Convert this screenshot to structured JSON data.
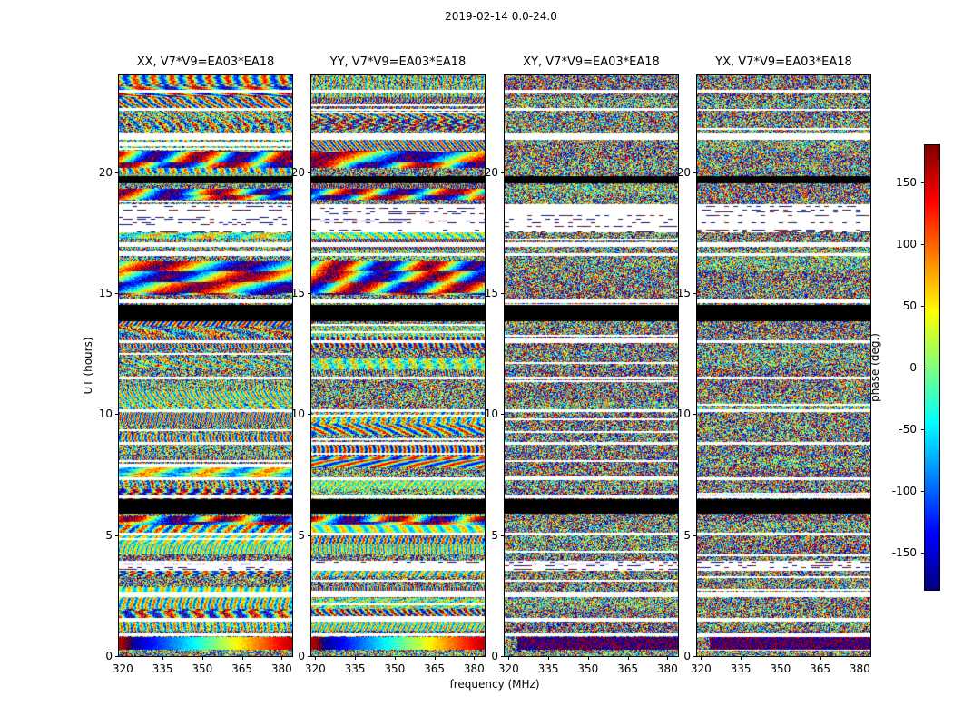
{
  "chart_data": {
    "type": "heatmap",
    "suptitle": "2019-02-14 0.0-24.0",
    "xlabel": "frequency (MHz)",
    "ylabel": "UT (hours)",
    "xlim": [
      318.5,
      384
    ],
    "ylim": [
      0,
      24
    ],
    "xticks": [
      320,
      335,
      350,
      365,
      380
    ],
    "yticks": [
      0,
      5,
      10,
      15,
      20
    ],
    "colormap": "jet",
    "grid": false,
    "panels": [
      {
        "label": "XX",
        "title": "XX, V7*V9=EA03*EA18",
        "kind": "parallel"
      },
      {
        "label": "YY",
        "title": "YY, V7*V9=EA03*EA18",
        "kind": "parallel"
      },
      {
        "label": "XY",
        "title": "XY, V7*V9=EA03*EA18",
        "kind": "cross"
      },
      {
        "label": "YX",
        "title": "YX, V7*V9=EA03*EA18",
        "kind": "cross"
      }
    ],
    "colorbar": {
      "label": "phase (deg.)",
      "ticks": [
        150,
        100,
        50,
        0,
        -50,
        -100,
        -150
      ],
      "vmin": -180,
      "vmax": 180
    },
    "values_description": "Noise-like interferometric visibility phases (-180..180 deg, jet colormap) vs frequency (x) and UT time (y) for baseline V7*V9=EA03*EA18; identical horizontal flagging bands in all four polarization panels: white gaps = no data, solid black bands = flagged/saturated scans, smooth rainbow bands = coherent phase sweeps.",
    "bands": [
      {
        "t0": 23.32,
        "t1": 23.42,
        "type": "white"
      },
      {
        "t0": 22.55,
        "t1": 22.65,
        "type": "white"
      },
      {
        "t0": 21.35,
        "t1": 21.62,
        "type": "white"
      },
      {
        "t0": 20.2,
        "t1": 20.9,
        "type": "smooth"
      },
      {
        "t0": 19.55,
        "t1": 19.85,
        "type": "black"
      },
      {
        "t0": 18.9,
        "t1": 19.35,
        "type": "smooth"
      },
      {
        "t0": 17.55,
        "t1": 18.7,
        "type": "sparse"
      },
      {
        "t0": 16.95,
        "t1": 17.12,
        "type": "white"
      },
      {
        "t0": 16.55,
        "t1": 16.68,
        "type": "white"
      },
      {
        "t0": 14.95,
        "t1": 16.35,
        "type": "smooth"
      },
      {
        "t0": 14.62,
        "t1": 14.75,
        "type": "white"
      },
      {
        "t0": 13.85,
        "t1": 14.55,
        "type": "black"
      },
      {
        "t0": 12.95,
        "t1": 13.06,
        "type": "white"
      },
      {
        "t0": 11.45,
        "t1": 11.57,
        "type": "white"
      },
      {
        "t0": 10.1,
        "t1": 10.22,
        "type": "white"
      },
      {
        "t0": 8.75,
        "t1": 8.87,
        "type": "white"
      },
      {
        "t0": 7.3,
        "t1": 7.42,
        "type": "white"
      },
      {
        "t0": 6.55,
        "t1": 6.65,
        "type": "white"
      },
      {
        "t0": 5.9,
        "t1": 6.5,
        "type": "black"
      },
      {
        "t0": 5.45,
        "t1": 5.78,
        "type": "smooth"
      },
      {
        "t0": 5.0,
        "t1": 5.12,
        "type": "white"
      },
      {
        "t0": 3.55,
        "t1": 3.95,
        "type": "sparse"
      },
      {
        "t0": 2.45,
        "t1": 2.7,
        "type": "white"
      },
      {
        "t0": 1.45,
        "t1": 1.6,
        "type": "white"
      },
      {
        "t0": 0.85,
        "t1": 0.95,
        "type": "white"
      },
      {
        "t0": 0.28,
        "t1": 0.8,
        "type": "rainbow"
      }
    ]
  }
}
